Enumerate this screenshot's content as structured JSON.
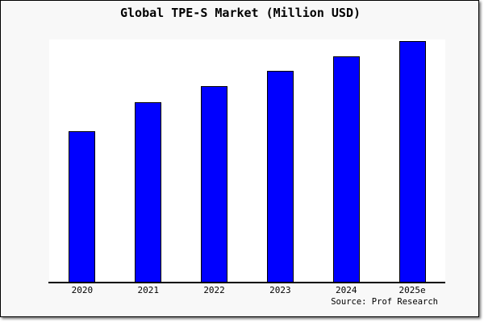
{
  "chart_data": {
    "type": "bar",
    "title": "Global TPE-S Market (Million USD)",
    "categories": [
      "2020",
      "2021",
      "2022",
      "2023",
      "2024",
      "2025e"
    ],
    "values": [
      62.7,
      74.7,
      81.3,
      87.7,
      93.7,
      100
    ],
    "values_note": "relative bar heights as % of tallest bar; chart shows no y-axis tick values",
    "xlabel": "",
    "ylabel": "",
    "grid": false,
    "legend_position": "none",
    "y_axis_labels_visible": false,
    "source": "Source: Prof Research",
    "colors": {
      "bar_fill": "#0000ff",
      "bar_border": "#000000",
      "canvas_background": "#f8f8f8",
      "plot_background": "#ffffff",
      "axis_line": "#000000",
      "text": "#000000"
    }
  }
}
